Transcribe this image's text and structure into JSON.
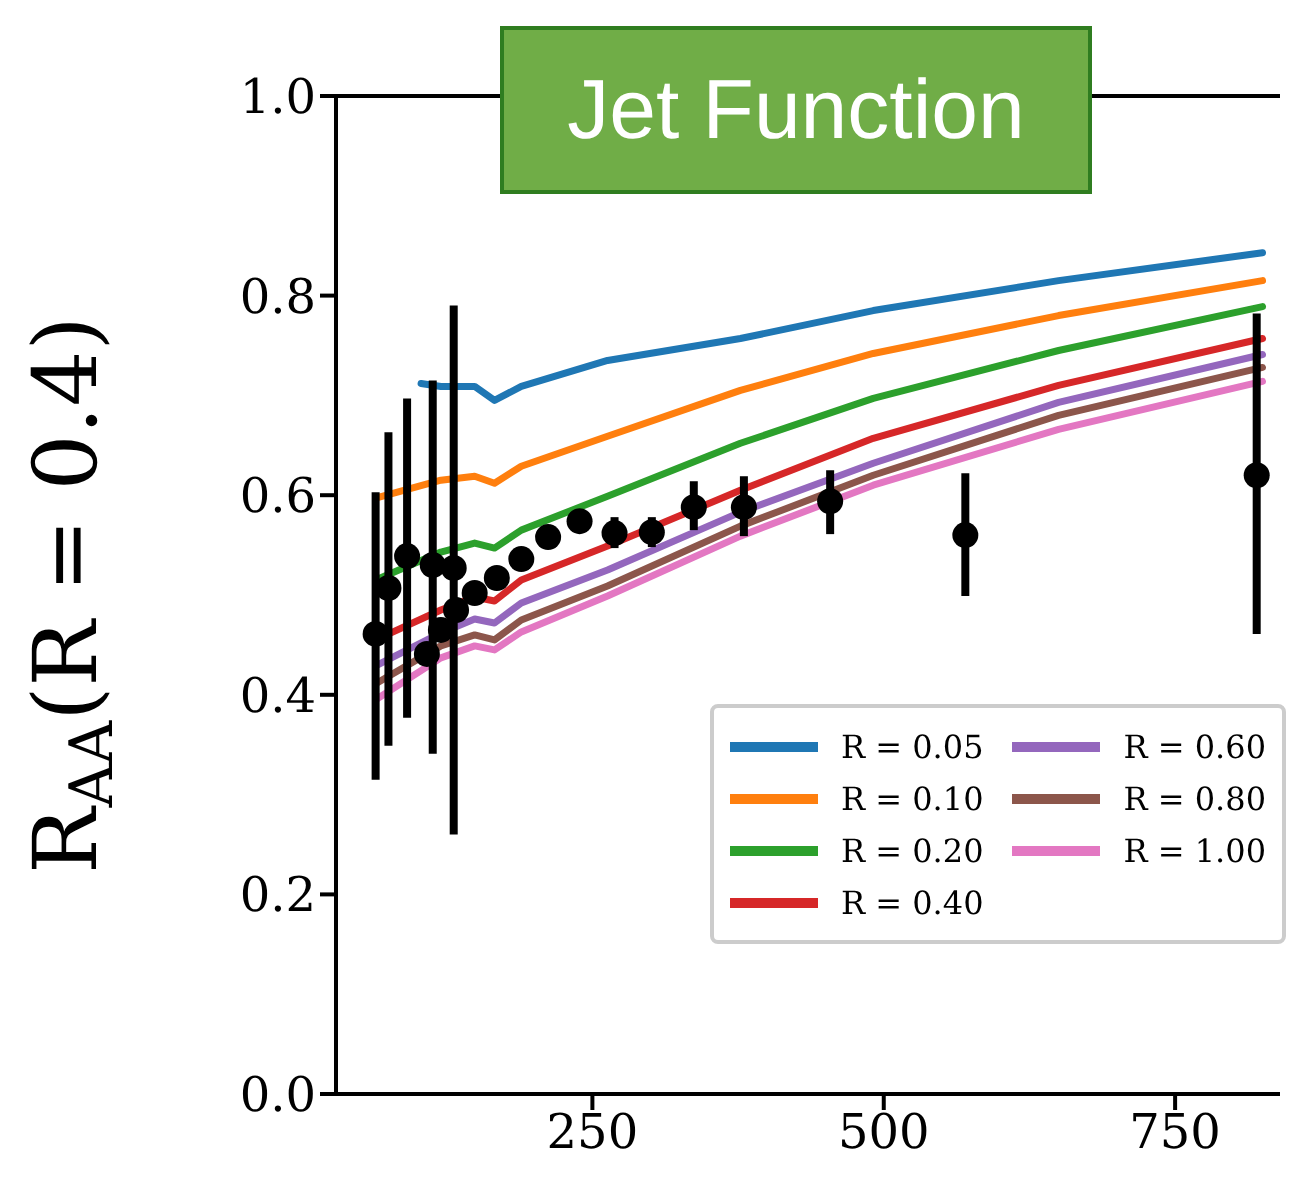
{
  "chart_data": {
    "type": "line",
    "title": "Jet Function",
    "ylabel": "R$_{AA}$(R = 0.4)",
    "x": [
      64,
      120,
      149,
      166,
      189,
      263,
      377,
      491,
      650,
      825
    ],
    "series": [
      {
        "name": "R = 0.05",
        "color": "#1f77b4",
        "x": [
          103,
          120,
          149,
          166,
          189,
          263,
          377,
          491,
          650,
          825
        ],
        "values": [
          0.712,
          0.709,
          0.709,
          0.695,
          0.709,
          0.735,
          0.757,
          0.785,
          0.815,
          0.843
        ]
      },
      {
        "name": "R = 0.10",
        "color": "#ff7f0e",
        "values": [
          0.597,
          0.615,
          0.619,
          0.612,
          0.629,
          0.659,
          0.705,
          0.742,
          0.78,
          0.815
        ]
      },
      {
        "name": "R = 0.20",
        "color": "#2ca02c",
        "values": [
          0.515,
          0.543,
          0.552,
          0.547,
          0.565,
          0.599,
          0.652,
          0.697,
          0.745,
          0.789
        ]
      },
      {
        "name": "R = 0.40",
        "color": "#d62728",
        "values": [
          0.455,
          0.485,
          0.498,
          0.494,
          0.515,
          0.549,
          0.605,
          0.657,
          0.71,
          0.757
        ]
      },
      {
        "name": "R = 0.60",
        "color": "#9467bd",
        "values": [
          0.429,
          0.462,
          0.476,
          0.472,
          0.492,
          0.525,
          0.583,
          0.632,
          0.693,
          0.741
        ]
      },
      {
        "name": "R = 0.80",
        "color": "#8c564b",
        "values": [
          0.411,
          0.449,
          0.46,
          0.455,
          0.475,
          0.509,
          0.569,
          0.62,
          0.68,
          0.728
        ]
      },
      {
        "name": "R = 1.00",
        "color": "#e377c2",
        "values": [
          0.395,
          0.437,
          0.449,
          0.445,
          0.463,
          0.499,
          0.559,
          0.61,
          0.666,
          0.714
        ]
      },
      {
        "type": "scatter",
        "color": "#000000",
        "marker": "circle",
        "x": [
          64,
          75,
          91,
          108,
          113,
          120,
          131,
          133,
          149,
          168,
          189,
          212,
          239,
          269,
          301,
          337,
          380,
          454,
          570,
          820
        ],
        "values": [
          0.461,
          0.507,
          0.539,
          0.441,
          0.53,
          0.465,
          0.527,
          0.485,
          0.502,
          0.517,
          0.536,
          0.558,
          0.574,
          0.562,
          0.563,
          0.588,
          0.588,
          0.594,
          0.56,
          0.62
        ],
        "errors": [
          [
            0.315,
            0.603
          ],
          [
            0.349,
            0.663
          ],
          [
            0.377,
            0.697
          ],
          null,
          [
            0.341,
            0.715
          ],
          null,
          [
            0.26,
            0.79
          ],
          null,
          null,
          null,
          null,
          null,
          null,
          [
            0.547,
            0.578
          ],
          [
            0.548,
            0.578
          ],
          [
            0.565,
            0.614
          ],
          [
            0.559,
            0.619
          ],
          [
            0.561,
            0.625
          ],
          [
            0.499,
            0.622
          ],
          [
            0.461,
            0.782
          ]
        ]
      }
    ],
    "xlim": [
      30,
      840
    ],
    "xticks": [
      250,
      500,
      750
    ],
    "ylim": [
      0,
      1
    ],
    "yticks": [
      {
        "value": 0,
        "label": "0.0"
      },
      0.2,
      0.4,
      0.6,
      0.8,
      {
        "value": 1,
        "label": "1.0"
      }
    ],
    "grid": false,
    "legend": "bottom right",
    "marker": "none",
    "line_style": "solid"
  }
}
